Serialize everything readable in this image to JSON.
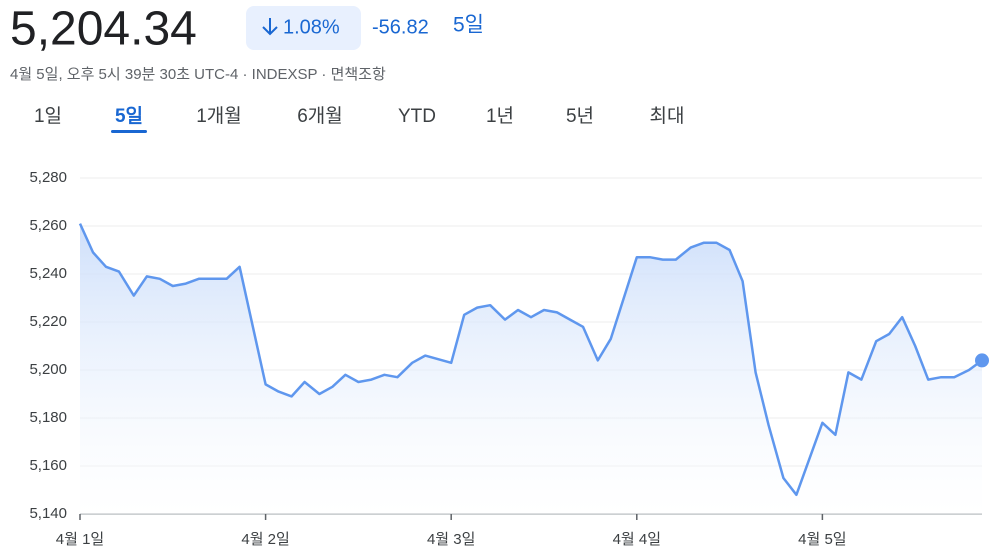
{
  "price": "5,204.34",
  "change_percent": "1.08%",
  "change": "-56.82",
  "change_period": "5일",
  "subtitle": "4월 5일, 오후 5시 39분 30초 UTC-4 · INDEXSP · 면책조항",
  "tabs": [
    "1일",
    "5일",
    "1개월",
    "6개월",
    "YTD",
    "1년",
    "5년",
    "최대"
  ],
  "selected_tab": 1,
  "chart_data": {
    "type": "line",
    "color": "#5f97ee",
    "grid": true,
    "x": [
      0,
      0.07,
      0.14,
      0.21,
      0.29,
      0.36,
      0.43,
      0.5,
      0.57,
      0.64,
      0.71,
      0.79,
      0.86,
      1,
      1.07,
      1.14,
      1.21,
      1.29,
      1.36,
      1.43,
      1.5,
      1.57,
      1.64,
      1.71,
      1.79,
      1.86,
      2,
      2.07,
      2.14,
      2.21,
      2.29,
      2.36,
      2.43,
      2.5,
      2.57,
      2.64,
      2.71,
      2.79,
      2.86,
      3,
      3.07,
      3.14,
      3.21,
      3.29,
      3.36,
      3.43,
      3.5,
      3.57,
      3.64,
      3.71,
      3.79,
      3.86,
      4,
      4.07,
      4.14,
      4.21,
      4.29,
      4.36,
      4.43,
      4.5,
      4.57,
      4.64,
      4.71,
      4.79,
      4.86
    ],
    "values": [
      5261,
      5249,
      5243,
      5241,
      5231,
      5239,
      5238,
      5235,
      5236,
      5238,
      5238,
      5238,
      5243,
      5194,
      5191,
      5189,
      5195,
      5190,
      5193,
      5198,
      5195,
      5196,
      5198,
      5197,
      5203,
      5206,
      5203,
      5223,
      5226,
      5227,
      5221,
      5225,
      5222,
      5225,
      5224,
      5221,
      5218,
      5204,
      5213,
      5247,
      5247,
      5246,
      5246,
      5251,
      5253,
      5253,
      5250,
      5237,
      5199,
      5177,
      5155,
      5148,
      5178,
      5173,
      5199,
      5196,
      5212,
      5215,
      5222,
      5210,
      5196,
      5197,
      5197,
      5200,
      5204
    ],
    "xlim": [
      0,
      4.86
    ],
    "xticks": [
      {
        "value": 0,
        "label": "4월 1일"
      },
      {
        "value": 1,
        "label": "4월 2일"
      },
      {
        "value": 2,
        "label": "4월 3일"
      },
      {
        "value": 3,
        "label": "4월 4일"
      },
      {
        "value": 4,
        "label": "4월 5일"
      }
    ],
    "ylim": [
      5140,
      5290
    ],
    "yticks": [
      {
        "value": 5140,
        "label": "5,140"
      },
      {
        "value": 5160,
        "label": "5,160"
      },
      {
        "value": 5180,
        "label": "5,180"
      },
      {
        "value": 5200,
        "label": "5,200"
      },
      {
        "value": 5220,
        "label": "5,220"
      },
      {
        "value": 5240,
        "label": "5,240"
      },
      {
        "value": 5260,
        "label": "5,260"
      },
      {
        "value": 5280,
        "label": "5,280"
      }
    ]
  }
}
